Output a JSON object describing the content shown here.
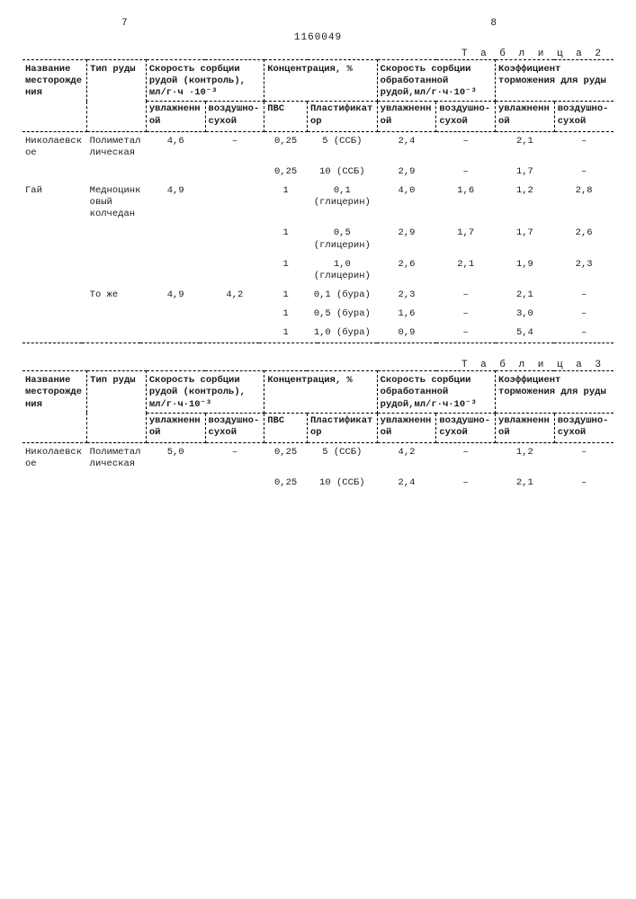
{
  "pageLeft": "7",
  "docNumber": "1160049",
  "pageRight": "8",
  "table2": {
    "title": "Т а б л и ц а 2",
    "headers": {
      "c1": "Название месторождения",
      "c2": "Тип руды",
      "c3": "Скорость сорбции рудой (контроль), мл/г·ч ·10⁻³",
      "c3a": "увлажненной",
      "c3b": "воздушно-сухой",
      "c4": "Концентрация, %",
      "c4a": "ПВС",
      "c4b": "Пластификатор",
      "c5": "Скорость сорбции обработанной рудой,мл/г·ч·10⁻³",
      "c5a": "увлажненной",
      "c5b": "воздушно-сухой",
      "c6": "Коэффициент торможения для руды",
      "c6a": "увлажненной",
      "c6b": "воздушно-сухой"
    },
    "rows": [
      {
        "c1": "Николаевское",
        "c2": "Полиметаллическая",
        "c3a": "4,6",
        "c3b": "–",
        "c4a": "0,25",
        "c4b": "5 (ССБ)",
        "c5a": "2,4",
        "c5b": "–",
        "c6a": "2,1",
        "c6b": "–"
      },
      {
        "c1": "",
        "c2": "",
        "c3a": "",
        "c3b": "",
        "c4a": "0,25",
        "c4b": "10 (ССБ)",
        "c5a": "2,9",
        "c5b": "–",
        "c6a": "1,7",
        "c6b": "–"
      },
      {
        "c1": "Гай",
        "c2": "Медноцинковый колчедан",
        "c3a": "4,9",
        "c3b": "",
        "c4a": "1",
        "c4b": "0,1 (глицерин)",
        "c5a": "4,0",
        "c5b": "1,6",
        "c6a": "1,2",
        "c6b": "2,8"
      },
      {
        "c1": "",
        "c2": "",
        "c3a": "",
        "c3b": "",
        "c4a": "1",
        "c4b": "0,5 (глицерин)",
        "c5a": "2,9",
        "c5b": "1,7",
        "c6a": "1,7",
        "c6b": "2,6"
      },
      {
        "c1": "",
        "c2": "",
        "c3a": "",
        "c3b": "",
        "c4a": "1",
        "c4b": "1,0 (глицерин)",
        "c5a": "2,6",
        "c5b": "2,1",
        "c6a": "1,9",
        "c6b": "2,3"
      },
      {
        "c1": "",
        "c2": "То же",
        "c3a": "4,9",
        "c3b": "4,2",
        "c4a": "1",
        "c4b": "0,1 (бура)",
        "c5a": "2,3",
        "c5b": "–",
        "c6a": "2,1",
        "c6b": "–"
      },
      {
        "c1": "",
        "c2": "",
        "c3a": "",
        "c3b": "",
        "c4a": "1",
        "c4b": "0,5 (бура)",
        "c5a": "1,6",
        "c5b": "–",
        "c6a": "3,0",
        "c6b": "–"
      },
      {
        "c1": "",
        "c2": "",
        "c3a": "",
        "c3b": "",
        "c4a": "1",
        "c4b": "1,0 (бура)",
        "c5a": "0,9",
        "c5b": "–",
        "c6a": "5,4",
        "c6b": "–"
      }
    ]
  },
  "table3": {
    "title": "Т а б л и ц а 3",
    "headers": {
      "c1": "Название месторождения",
      "c2": "Тип руды",
      "c3": "Скорость сорбции рудой (контроль), мл/г·ч·10⁻³",
      "c3a": "увлажненной",
      "c3b": "воздушно-сухой",
      "c4": "Концентрация, %",
      "c4a": "ПВС",
      "c4b": "Пластификатор",
      "c5": "Скорость сорбции обработанной рудой,мл/г·ч·10⁻³",
      "c5a": "увлажненной",
      "c5b": "воздушно-сухой",
      "c6": "Коэффициент торможения для руды",
      "c6a": "увлажненной",
      "c6b": "воздушно-сухой"
    },
    "rows": [
      {
        "c1": "Николаевское",
        "c2": "Полиметаллическая",
        "c3a": "5,0",
        "c3b": "–",
        "c4a": "0,25",
        "c4b": "5 (ССБ)",
        "c5a": "4,2",
        "c5b": "–",
        "c6a": "1,2",
        "c6b": "–"
      },
      {
        "c1": "",
        "c2": "",
        "c3a": "",
        "c3b": "",
        "c4a": "0,25",
        "c4b": "10 (ССБ)",
        "c5a": "2,4",
        "c5b": "–",
        "c6a": "2,1",
        "c6b": "–"
      }
    ]
  }
}
